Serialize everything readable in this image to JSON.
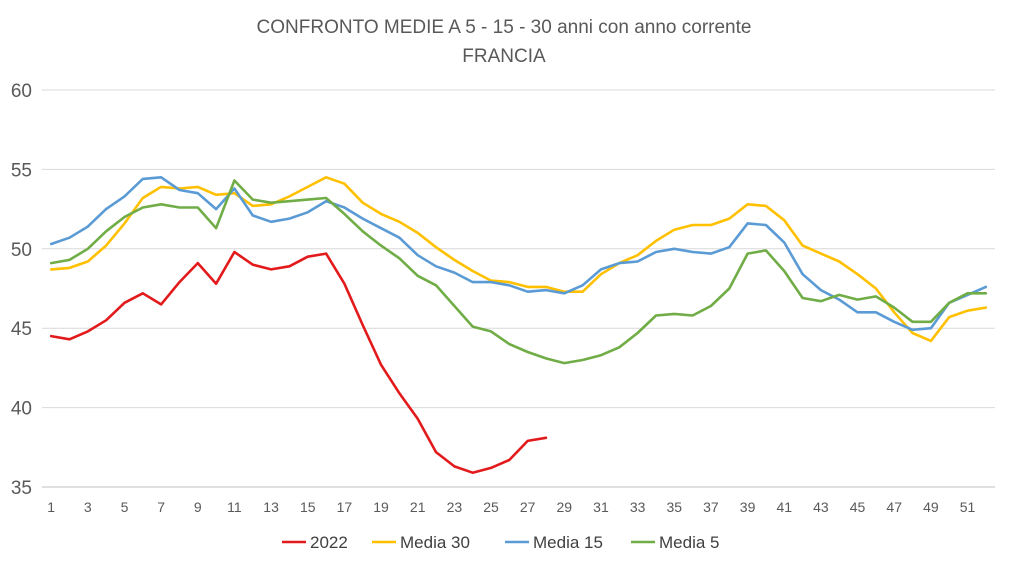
{
  "chart_data": {
    "type": "line",
    "title": "CONFRONTO MEDIE A 5 - 15 - 30 anni con anno corrente",
    "subtitle": "FRANCIA",
    "xlabel": "",
    "ylabel": "",
    "x": [
      1,
      2,
      3,
      4,
      5,
      6,
      7,
      8,
      9,
      10,
      11,
      12,
      13,
      14,
      15,
      16,
      17,
      18,
      19,
      20,
      21,
      22,
      23,
      24,
      25,
      26,
      27,
      28,
      29,
      30,
      31,
      32,
      33,
      34,
      35,
      36,
      37,
      38,
      39,
      40,
      41,
      42,
      43,
      44,
      45,
      46,
      47,
      48,
      49,
      50,
      51,
      52
    ],
    "x_tick_labels": [
      "1",
      "3",
      "5",
      "7",
      "9",
      "11",
      "13",
      "15",
      "17",
      "19",
      "21",
      "23",
      "25",
      "27",
      "29",
      "31",
      "33",
      "35",
      "37",
      "39",
      "41",
      "43",
      "45",
      "47",
      "49",
      "51"
    ],
    "y_tick_labels": [
      "35",
      "40",
      "45",
      "50",
      "55",
      "60"
    ],
    "ylim": [
      35,
      60
    ],
    "xlim": [
      0.5,
      52.5
    ],
    "grid": true,
    "legend_position": "bottom",
    "series": [
      {
        "name": "2022",
        "color": "#e31a1c",
        "values": [
          44.5,
          44.3,
          44.8,
          45.5,
          46.6,
          47.2,
          46.5,
          47.9,
          49.1,
          47.8,
          49.8,
          49.0,
          48.7,
          48.9,
          49.5,
          49.7,
          47.8,
          45.2,
          42.7,
          40.9,
          39.3,
          37.2,
          36.3,
          35.9,
          36.2,
          36.7,
          37.9,
          38.1,
          null,
          null,
          null,
          null,
          null,
          null,
          null,
          null,
          null,
          null,
          null,
          null,
          null,
          null,
          null,
          null,
          null,
          null,
          null,
          null,
          null,
          null,
          null,
          null
        ]
      },
      {
        "name": "Media 30",
        "color": "#ffc000",
        "values": [
          48.7,
          48.8,
          49.2,
          50.2,
          51.6,
          53.2,
          53.9,
          53.8,
          53.9,
          53.4,
          53.5,
          52.7,
          52.8,
          53.3,
          53.9,
          54.5,
          54.1,
          52.9,
          52.2,
          51.7,
          51.0,
          50.1,
          49.3,
          48.6,
          48.0,
          47.9,
          47.6,
          47.6,
          47.3,
          47.3,
          48.4,
          49.1,
          49.6,
          50.5,
          51.2,
          51.5,
          51.5,
          51.9,
          52.8,
          52.7,
          51.8,
          50.2,
          49.7,
          49.2,
          48.4,
          47.5,
          46.0,
          44.7,
          44.2,
          45.7,
          46.1,
          46.3
        ]
      },
      {
        "name": "Media 15",
        "color": "#5b9bd5",
        "values": [
          50.3,
          50.7,
          51.4,
          52.5,
          53.3,
          54.4,
          54.5,
          53.7,
          53.5,
          52.5,
          53.8,
          52.1,
          51.7,
          51.9,
          52.3,
          53.0,
          52.6,
          51.9,
          51.3,
          50.7,
          49.6,
          48.9,
          48.5,
          47.9,
          47.9,
          47.7,
          47.3,
          47.4,
          47.2,
          47.7,
          48.7,
          49.1,
          49.2,
          49.8,
          50.0,
          49.8,
          49.7,
          50.1,
          51.6,
          51.5,
          50.4,
          48.4,
          47.4,
          46.8,
          46.0,
          46.0,
          45.4,
          44.9,
          45.0,
          46.6,
          47.1,
          47.6
        ]
      },
      {
        "name": "Media 5",
        "color": "#70ad47",
        "values": [
          49.1,
          49.3,
          50.0,
          51.1,
          52.0,
          52.6,
          52.8,
          52.6,
          52.6,
          51.3,
          54.3,
          53.1,
          52.9,
          53.0,
          53.1,
          53.2,
          52.2,
          51.1,
          50.2,
          49.4,
          48.3,
          47.7,
          46.4,
          45.1,
          44.8,
          44.0,
          43.5,
          43.1,
          42.8,
          43.0,
          43.3,
          43.8,
          44.7,
          45.8,
          45.9,
          45.8,
          46.4,
          47.5,
          49.7,
          49.9,
          48.6,
          46.9,
          46.7,
          47.1,
          46.8,
          47.0,
          46.3,
          45.4,
          45.4,
          46.6,
          47.2,
          47.2
        ]
      }
    ]
  }
}
